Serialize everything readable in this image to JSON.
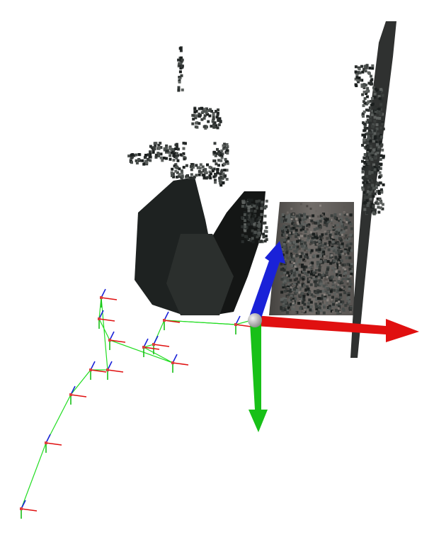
{
  "viewer": {
    "background": "#ffffff",
    "gizmo": {
      "x_axis_color": "#e01010",
      "y_axis_color": "#18c018",
      "z_axis_color": "#1a22d8",
      "origin_color": "#b8b8b8"
    },
    "trajectory": {
      "path_color": "#22dd22",
      "pose_count": 15
    },
    "point_cloud": {
      "dark_tones": [
        "#1b1f1e",
        "#2a2e2d",
        "#3a3e3c",
        "#4a4f4d",
        "#5c605e"
      ],
      "wall_tones": [
        "#4a4744",
        "#5a5653",
        "#6b6662",
        "#7b7571",
        "#8a847f"
      ]
    }
  }
}
